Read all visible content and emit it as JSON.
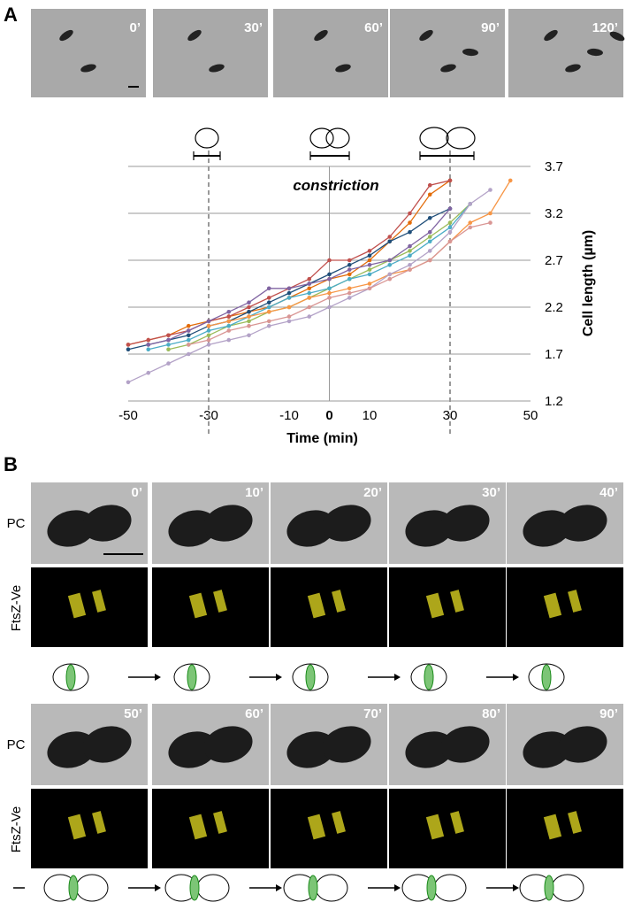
{
  "panel_a": {
    "label": "A",
    "times": [
      "0’",
      "30’",
      "60’",
      "90’",
      "120’"
    ]
  },
  "panel_b": {
    "label": "B",
    "row_labels": [
      "PC",
      "FtsZ-Ve"
    ],
    "times_top": [
      "0’",
      "10’",
      "20’",
      "30’",
      "40’"
    ],
    "times_bottom": [
      "50’",
      "60’",
      "70’",
      "80’",
      "90’"
    ]
  },
  "chart_data": {
    "type": "line",
    "annotation": "constriction",
    "x_label": "Time (min)",
    "y_label": "Cell length (µm)",
    "xlim": [
      -50,
      50
    ],
    "xticks": [
      -50,
      -30,
      -10,
      0,
      10,
      30,
      50
    ],
    "ylim": [
      1.2,
      3.7
    ],
    "yticks": [
      1.2,
      1.7,
      2.2,
      2.7,
      3.2,
      3.7
    ],
    "grid": true,
    "y_axis_side": "right",
    "reference_lines_x": [
      -30,
      30
    ],
    "series": [
      {
        "color": "#e36c0a",
        "x": [
          -50,
          -45,
          -40,
          -35,
          -30,
          -25,
          -20,
          -15,
          -10,
          -5,
          0,
          5,
          10,
          15,
          20,
          25,
          30
        ],
        "values": [
          1.8,
          1.85,
          1.9,
          2.0,
          2.05,
          2.1,
          2.15,
          2.2,
          2.3,
          2.4,
          2.5,
          2.55,
          2.7,
          2.9,
          3.1,
          3.4,
          3.55
        ]
      },
      {
        "color": "#c0504d",
        "x": [
          -50,
          -45,
          -40,
          -35,
          -30,
          -25,
          -20,
          -15,
          -10,
          -5,
          0,
          5,
          10,
          15,
          20,
          25,
          30
        ],
        "values": [
          1.8,
          1.85,
          1.9,
          1.95,
          2.05,
          2.1,
          2.2,
          2.3,
          2.4,
          2.5,
          2.7,
          2.7,
          2.8,
          2.95,
          3.2,
          3.5,
          3.55
        ]
      },
      {
        "color": "#1f4e79",
        "x": [
          -50,
          -45,
          -40,
          -35,
          -30,
          -25,
          -20,
          -15,
          -10,
          -5,
          0,
          5,
          10,
          15,
          20,
          25,
          30
        ],
        "values": [
          1.75,
          1.8,
          1.85,
          1.9,
          2.0,
          2.05,
          2.15,
          2.25,
          2.35,
          2.45,
          2.55,
          2.65,
          2.75,
          2.9,
          3.0,
          3.15,
          3.25
        ]
      },
      {
        "color": "#9bbb59",
        "x": [
          -40,
          -35,
          -30,
          -25,
          -20,
          -15,
          -10,
          -5,
          0,
          5,
          10,
          15,
          20,
          25,
          30,
          35
        ],
        "values": [
          1.75,
          1.8,
          1.9,
          2.0,
          2.05,
          2.15,
          2.2,
          2.3,
          2.4,
          2.5,
          2.6,
          2.7,
          2.8,
          2.95,
          3.1,
          3.3
        ]
      },
      {
        "color": "#8064a2",
        "x": [
          -45,
          -40,
          -35,
          -30,
          -25,
          -20,
          -15,
          -10,
          -5,
          0,
          5,
          10,
          15,
          20,
          25,
          30
        ],
        "values": [
          1.8,
          1.85,
          1.95,
          2.05,
          2.15,
          2.25,
          2.4,
          2.4,
          2.45,
          2.5,
          2.6,
          2.65,
          2.7,
          2.85,
          3.0,
          3.25
        ]
      },
      {
        "color": "#4bacc6",
        "x": [
          -45,
          -40,
          -35,
          -30,
          -25,
          -20,
          -15,
          -10,
          -5,
          0,
          5,
          10,
          15,
          20,
          25,
          30,
          35
        ],
        "values": [
          1.75,
          1.8,
          1.85,
          1.95,
          2.0,
          2.1,
          2.2,
          2.3,
          2.35,
          2.4,
          2.5,
          2.55,
          2.65,
          2.75,
          2.9,
          3.05,
          3.3
        ]
      },
      {
        "color": "#f79646",
        "x": [
          -30,
          -25,
          -20,
          -15,
          -10,
          -5,
          0,
          5,
          10,
          15,
          20,
          25,
          30,
          35,
          40,
          45
        ],
        "values": [
          2.0,
          2.05,
          2.1,
          2.15,
          2.2,
          2.3,
          2.35,
          2.4,
          2.45,
          2.55,
          2.6,
          2.7,
          2.9,
          3.1,
          3.2,
          3.55
        ]
      },
      {
        "color": "#b3a2c7",
        "x": [
          -50,
          -45,
          -40,
          -35,
          -30,
          -25,
          -20,
          -15,
          -10,
          -5,
          0,
          5,
          10,
          15,
          20,
          25,
          30,
          35,
          40
        ],
        "values": [
          1.4,
          1.5,
          1.6,
          1.7,
          1.8,
          1.85,
          1.9,
          2.0,
          2.05,
          2.1,
          2.2,
          2.3,
          2.4,
          2.55,
          2.65,
          2.8,
          3.0,
          3.3,
          3.45
        ]
      },
      {
        "color": "#d99694",
        "x": [
          -35,
          -30,
          -25,
          -20,
          -15,
          -10,
          -5,
          0,
          5,
          10,
          15,
          20,
          25,
          30,
          35,
          40
        ],
        "values": [
          1.8,
          1.85,
          1.95,
          2.0,
          2.05,
          2.1,
          2.2,
          2.3,
          2.35,
          2.4,
          2.5,
          2.6,
          2.7,
          2.9,
          3.05,
          3.1
        ]
      }
    ]
  }
}
